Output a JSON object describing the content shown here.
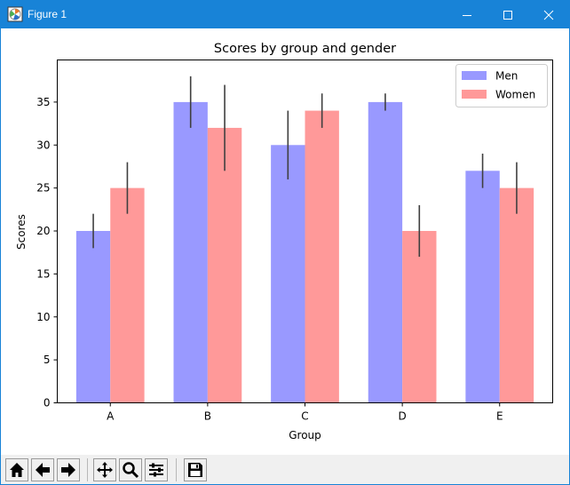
{
  "window": {
    "title": "Figure 1"
  },
  "toolbar": {
    "buttons": [
      "home-icon",
      "back-arrow-icon",
      "forward-arrow-icon",
      "pan-icon",
      "zoom-icon",
      "configure-subplots-icon",
      "save-icon"
    ]
  },
  "chart_data": {
    "type": "bar",
    "title": "Scores by group and gender",
    "xlabel": "Group",
    "ylabel": "Scores",
    "categories": [
      "A",
      "B",
      "C",
      "D",
      "E"
    ],
    "yticks": [
      0,
      5,
      10,
      15,
      20,
      25,
      30,
      35
    ],
    "ylim": [
      0,
      39.9
    ],
    "series": [
      {
        "name": "Men",
        "color": "#9999ff",
        "values": [
          20,
          35,
          30,
          35,
          27
        ],
        "errors": [
          2,
          3,
          4,
          1,
          2
        ]
      },
      {
        "name": "Women",
        "color": "#ff9999",
        "values": [
          25,
          32,
          34,
          20,
          25
        ],
        "errors": [
          3,
          5,
          2,
          3,
          3
        ]
      }
    ],
    "legend_position": "top-right",
    "grid": false
  }
}
